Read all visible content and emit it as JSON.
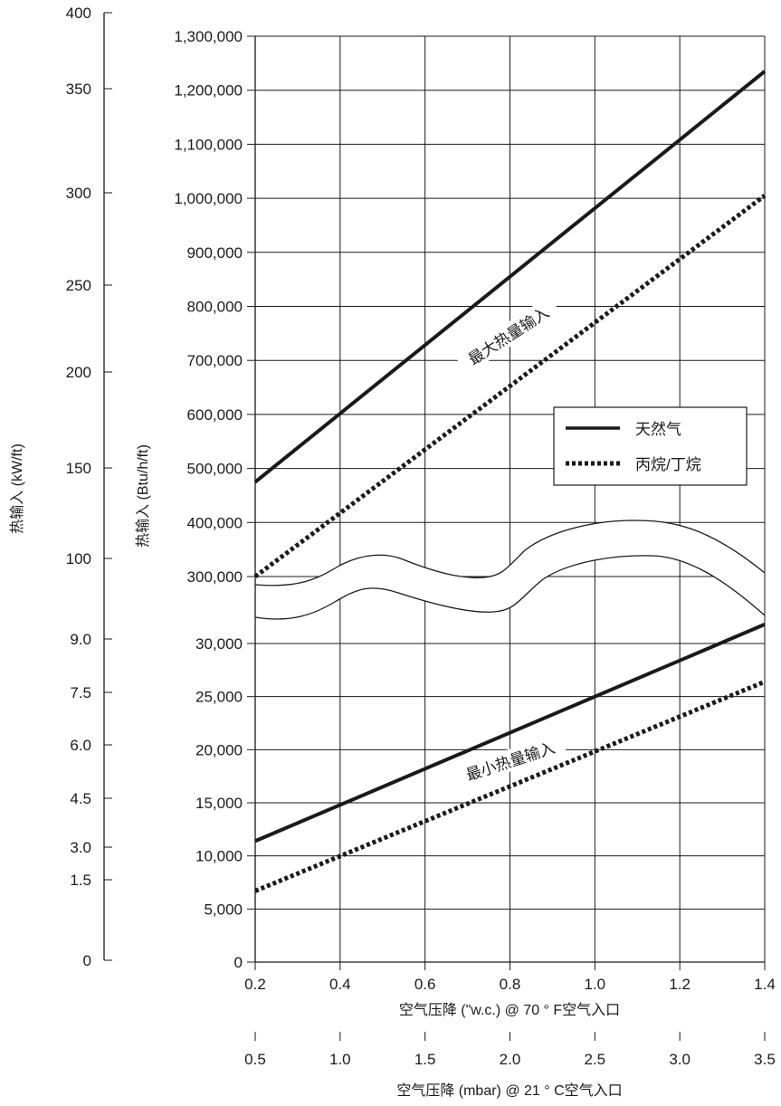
{
  "chart_data": {
    "type": "line",
    "x_bottom_label": "空气压降 (\"w.c.) @ 70 ° F空气入口",
    "x_bottom_ticks": [
      "0.2",
      "0.4",
      "0.6",
      "0.8",
      "1.0",
      "1.2",
      "1.4"
    ],
    "x_bottom_range": [
      0.2,
      1.4
    ],
    "x_secondary_label": "空气压降 (mbar) @ 21 ° C空气入口",
    "x_secondary_ticks": [
      "0.5",
      "1.0",
      "1.5",
      "2.0",
      "2.5",
      "3.0",
      "3.5"
    ],
    "x_secondary_range": [
      0.5,
      3.5
    ],
    "y_left_label": "热输入 (kW/ft)",
    "y_left_ticks": [
      "0",
      "1.5",
      "3.0",
      "4.5",
      "6.0",
      "7.5",
      "9.0",
      "100",
      "150",
      "200",
      "250",
      "300",
      "350",
      "400"
    ],
    "y_inner_label": "热输入 (Btu/h/ft)",
    "y_inner_ticks_lower": [
      "0",
      "5,000",
      "10,000",
      "15,000",
      "20,000",
      "25,000",
      "30,000"
    ],
    "y_inner_ticks_upper": [
      "300,000",
      "400,000",
      "500,000",
      "600,000",
      "700,000",
      "800,000",
      "900,000",
      "1,000,000",
      "1,100,000",
      "1,200,000",
      "1,300,000"
    ],
    "y_lower_range": [
      0,
      30000
    ],
    "y_upper_range": [
      300000,
      1300000
    ],
    "axis_break": true,
    "grid": true,
    "legend_placement": "right-middle",
    "legend": [
      {
        "name": "天然气",
        "style": "solid"
      },
      {
        "name": "丙烷/丁烷",
        "style": "dotted"
      }
    ],
    "annotations": {
      "max": "最大热量输入",
      "min": "最小热量输入"
    },
    "series": [
      {
        "name": "天然气",
        "group": "最大热量输入",
        "style": "solid",
        "x": [
          0.2,
          1.4
        ],
        "y": [
          475000,
          1235000
        ]
      },
      {
        "name": "丙烷/丁烷",
        "group": "最大热量输入",
        "style": "dotted",
        "x": [
          0.2,
          1.4
        ],
        "y": [
          300000,
          1005000
        ]
      },
      {
        "name": "天然气",
        "group": "最小热量输入",
        "style": "solid",
        "x": [
          0.2,
          1.4
        ],
        "y": [
          11400,
          31800
        ]
      },
      {
        "name": "丙烷/丁烷",
        "group": "最小热量输入",
        "style": "dotted",
        "x": [
          0.2,
          1.4
        ],
        "y": [
          6700,
          26400
        ]
      }
    ]
  }
}
